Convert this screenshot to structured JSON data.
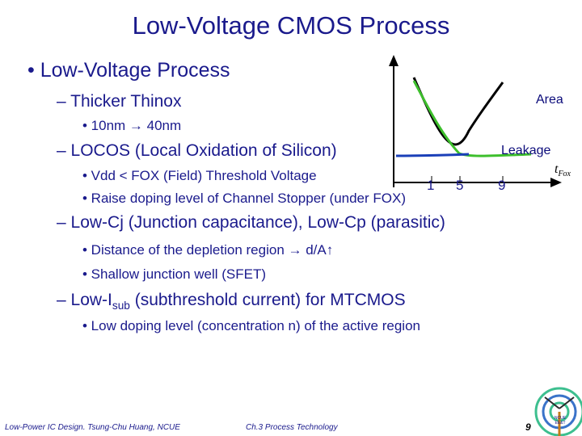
{
  "slide": {
    "title": "Low-Voltage CMOS Process",
    "bullet_main": "• Low-Voltage Process",
    "items": [
      {
        "text": "– Thicker Thinox",
        "subitems": [
          "• 10nm → 40nm"
        ]
      },
      {
        "text": "– LOCOS (Local Oxidation of Silicon)",
        "subitems": [
          "• Vdd < FOX (Field) Threshold Voltage",
          "• Raise doping level of Channel Stopper (under FOX)"
        ]
      },
      {
        "text": "– Low-Cj (Junction capacitance), Low-Cp (parasitic)",
        "subitems": [
          "• Distance of the depletion region → d/A↑",
          "• Shallow junction well (SFET)"
        ]
      },
      {
        "text_prefix": "– Low-I",
        "text_sub": "sub",
        "text_suffix": " (subthreshold current) for MTCMOS",
        "subitems": [
          "• Low doping level (concentration n) of the active region"
        ]
      }
    ]
  },
  "chart": {
    "area_label": "Area",
    "leakage_label": "Leakage",
    "x_label_main": "t",
    "x_label_sub": "Fox",
    "ticks": [
      "1",
      "5",
      "9"
    ],
    "colors": {
      "area": "#000000",
      "leakage": "#3dbf2c",
      "tail": "#1a3fb8"
    }
  },
  "footer": {
    "left": "Low-Power IC Design. Tsung-Chu Huang, NCUE",
    "center": "Ch.3 Process Technology",
    "page": "9",
    "logo_text": "NCUE EE&T"
  }
}
